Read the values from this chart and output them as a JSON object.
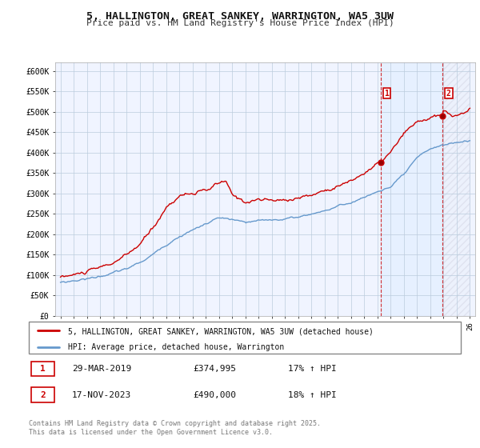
{
  "title": "5, HALLINGTON, GREAT SANKEY, WARRINGTON, WA5 3UW",
  "subtitle": "Price paid vs. HM Land Registry's House Price Index (HPI)",
  "ylim": [
    0,
    620000
  ],
  "ytick_vals": [
    0,
    50000,
    100000,
    150000,
    200000,
    250000,
    300000,
    350000,
    400000,
    450000,
    500000,
    550000,
    600000
  ],
  "ytick_labels": [
    "£0",
    "£50K",
    "£100K",
    "£150K",
    "£200K",
    "£250K",
    "£300K",
    "£350K",
    "£400K",
    "£450K",
    "£500K",
    "£550K",
    "£600K"
  ],
  "legend_line1": "5, HALLINGTON, GREAT SANKEY, WARRINGTON, WA5 3UW (detached house)",
  "legend_line2": "HPI: Average price, detached house, Warrington",
  "red_color": "#cc0000",
  "blue_color": "#6699cc",
  "blue_fill_color": "#ddeeff",
  "annotation1_label": "1",
  "annotation1_date": "29-MAR-2019",
  "annotation1_price": "£374,995",
  "annotation1_hpi": "17% ↑ HPI",
  "annotation2_label": "2",
  "annotation2_date": "17-NOV-2023",
  "annotation2_price": "£490,000",
  "annotation2_hpi": "18% ↑ HPI",
  "footer": "Contains HM Land Registry data © Crown copyright and database right 2025.\nThis data is licensed under the Open Government Licence v3.0.",
  "background_color": "#ffffff",
  "chart_bg": "#f0f4ff",
  "grid_color": "#bbccdd",
  "sale1_year": 2019.21,
  "sale1_price": 374995,
  "sale2_year": 2023.88,
  "sale2_price": 490000,
  "year_start": 1995,
  "year_end": 2026
}
